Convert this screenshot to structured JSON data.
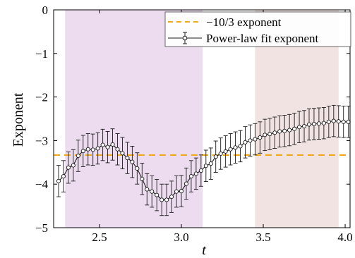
{
  "chart_data": {
    "type": "line",
    "xlabel": "t",
    "ylabel": "Exponent",
    "xlim": [
      2.22,
      4.03
    ],
    "ylim": [
      -5,
      0
    ],
    "xticks": [
      2.5,
      3.0,
      3.5,
      4.0
    ],
    "xtick_labels": [
      "2.5",
      "3.0",
      "3.5",
      "4.0"
    ],
    "yticks": [
      0,
      -1,
      -2,
      -3,
      -4,
      -5
    ],
    "ytick_labels": [
      "0",
      "−1",
      "−2",
      "−3",
      "−4",
      "−5"
    ],
    "legend_position": "top-right",
    "shaded_regions": [
      {
        "x0": 2.29,
        "x1": 3.13,
        "color": "#eddcf0"
      },
      {
        "x0": 3.45,
        "x1": 3.96,
        "color": "#f0e3e1"
      }
    ],
    "series": [
      {
        "name": "−10/3 exponent",
        "style": "dashed",
        "color": "#f0a818",
        "x": [
          2.22,
          4.03
        ],
        "y": [
          -3.333,
          -3.333
        ]
      },
      {
        "name": "Power-law fit exponent",
        "style": "line-errorbar-circle",
        "color": "#1a1a1a",
        "x": [
          2.25,
          2.28,
          2.31,
          2.34,
          2.37,
          2.4,
          2.43,
          2.46,
          2.49,
          2.52,
          2.55,
          2.58,
          2.61,
          2.64,
          2.67,
          2.7,
          2.73,
          2.76,
          2.79,
          2.82,
          2.85,
          2.88,
          2.91,
          2.94,
          2.97,
          3.0,
          3.03,
          3.06,
          3.09,
          3.12,
          3.15,
          3.18,
          3.21,
          3.24,
          3.27,
          3.3,
          3.33,
          3.36,
          3.39,
          3.42,
          3.45,
          3.48,
          3.51,
          3.54,
          3.57,
          3.6,
          3.63,
          3.66,
          3.69,
          3.72,
          3.75,
          3.78,
          3.81,
          3.84,
          3.87,
          3.9,
          3.93,
          3.96,
          3.99,
          4.02
        ],
        "y": [
          -3.93,
          -3.82,
          -3.62,
          -3.57,
          -3.35,
          -3.24,
          -3.2,
          -3.21,
          -3.18,
          -3.1,
          -3.15,
          -3.09,
          -3.2,
          -3.29,
          -3.4,
          -3.49,
          -3.64,
          -3.88,
          -4.12,
          -4.17,
          -4.25,
          -4.36,
          -4.36,
          -4.29,
          -4.17,
          -4.16,
          -3.99,
          -3.82,
          -3.76,
          -3.69,
          -3.58,
          -3.53,
          -3.37,
          -3.3,
          -3.25,
          -3.2,
          -3.16,
          -3.13,
          -3.04,
          -3.0,
          -2.97,
          -2.93,
          -2.87,
          -2.85,
          -2.82,
          -2.79,
          -2.78,
          -2.76,
          -2.73,
          -2.69,
          -2.67,
          -2.63,
          -2.62,
          -2.61,
          -2.6,
          -2.57,
          -2.55,
          -2.56,
          -2.57,
          -2.57
        ],
        "yerr": 0.36
      }
    ]
  }
}
